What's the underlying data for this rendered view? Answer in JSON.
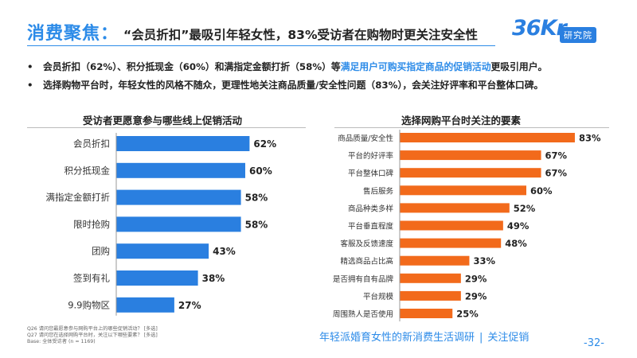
{
  "header": {
    "title": "消费聚焦：",
    "subtitle": "“会员折扣”最吸引年轻女性，83%受访者在购物时更关注安全性",
    "logo_text": "36Kr",
    "logo_badge": "研究院"
  },
  "bullets": [
    {
      "dot": "•",
      "prefix": "会员折扣（62%）、积分抵现金（60%）和满指定金额打折（58%）等",
      "highlight": "满足用户可购买指定商品的促销活动",
      "suffix": "更吸引用户。"
    },
    {
      "dot": "•",
      "text": "选择购物平台时，年轻女性的风格不随众，更理性地关注商品质量/安全性问题（83%），会关注好评率和平台整体口碑。"
    }
  ],
  "colors": {
    "accent": "#2c8be8",
    "bar_blue": "#2a7fe0",
    "bar_orange": "#f26a1b"
  },
  "chart_data": [
    {
      "type": "bar",
      "orientation": "horizontal",
      "title": "受访者更愿意参与哪些线上促销活动",
      "categories": [
        "会员折扣",
        "积分抵现金",
        "满指定金额打折",
        "限时抢购",
        "团购",
        "签到有礼",
        "9.9购物区"
      ],
      "values": [
        62,
        60,
        58,
        58,
        43,
        38,
        27
      ],
      "value_labels": [
        "62%",
        "60%",
        "58%",
        "58%",
        "43%",
        "38%",
        "27%"
      ],
      "unit": "%",
      "color": "#2a7fe0",
      "xlim": [
        0,
        100
      ]
    },
    {
      "type": "bar",
      "orientation": "horizontal",
      "title": "选择网购平台时关注的要素",
      "categories": [
        "商品质量/安全性",
        "平台的好评率",
        "平台整体口碑",
        "售后服务",
        "商品种类多样",
        "平台垂直程度",
        "客服及反馈速度",
        "精选商品占比高",
        "是否拥有自有品牌",
        "平台规模",
        "周围熟人是否使用"
      ],
      "values": [
        83,
        67,
        67,
        60,
        52,
        49,
        48,
        33,
        29,
        29,
        25
      ],
      "value_labels": [
        "83%",
        "67%",
        "67%",
        "60%",
        "52%",
        "49%",
        "48%",
        "33%",
        "29%",
        "29%",
        "25%"
      ],
      "unit": "%",
      "color": "#f26a1b",
      "xlim": [
        0,
        100
      ]
    }
  ],
  "footer": {
    "notes": [
      "Q26 请问您最愿意参与网购平台上的哪些促销活动？ [多选]",
      "Q27 请问您在选择网购平台时，关注以下哪些要素？ [多选]",
      "Base: 全体受访者 (n = 1169)"
    ],
    "report_title": "年轻派婚育女性的新消费生活调研",
    "separator": "|",
    "tag": "关注促销",
    "page_number": "-32-"
  }
}
